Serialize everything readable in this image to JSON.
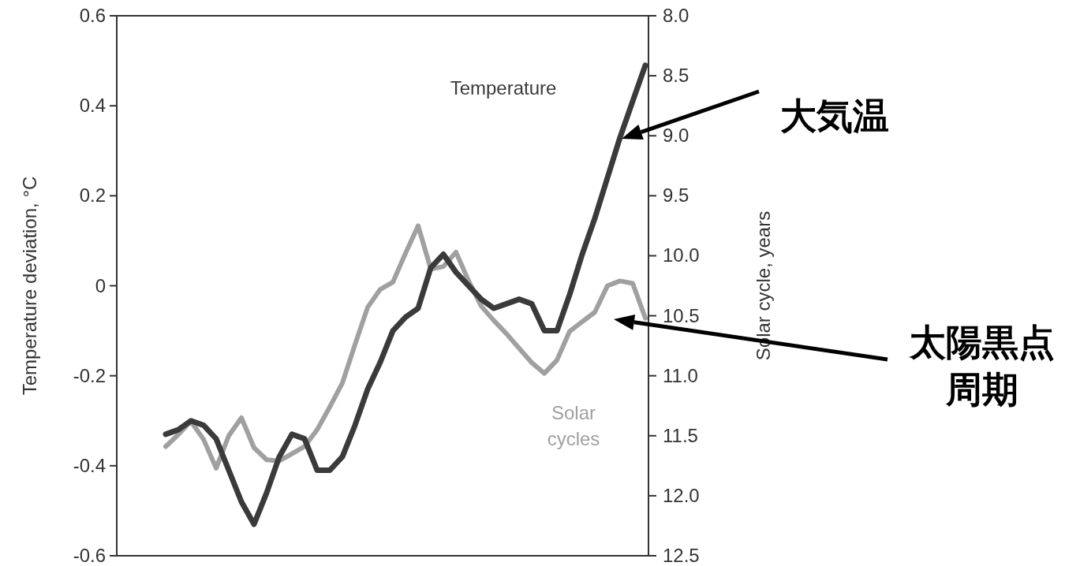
{
  "chart_data": {
    "type": "line",
    "ylabel": "Temperature deviation, °C",
    "y2label": "Solar cycle, years",
    "categories": [
      null,
      null,
      null,
      null,
      null,
      null,
      null,
      null,
      null,
      null,
      null,
      null,
      null,
      null,
      null,
      null,
      null,
      null,
      null,
      null,
      null,
      null,
      null,
      null,
      null,
      null,
      null,
      null,
      null,
      null,
      null,
      null,
      null,
      null,
      null,
      null,
      null,
      null,
      null
    ],
    "series": [
      {
        "name": "Temperature",
        "color": "#3a3a3a",
        "values": [
          -0.33,
          -0.32,
          -0.3,
          -0.31,
          -0.34,
          -0.41,
          -0.48,
          -0.53,
          -0.46,
          -0.38,
          -0.33,
          -0.34,
          -0.41,
          -0.41,
          -0.38,
          -0.31,
          -0.23,
          -0.17,
          -0.1,
          -0.07,
          -0.05,
          0.04,
          0.07,
          0.03,
          0.0,
          -0.03,
          -0.05,
          -0.04,
          -0.03,
          -0.04,
          -0.1,
          -0.1,
          -0.02,
          0.07,
          0.15,
          0.24,
          0.33,
          0.41,
          0.49
        ]
      },
      {
        "name": "Solar cycles",
        "color": "#a0a0a0",
        "axis": "y2",
        "values": [
          11.59,
          11.49,
          11.38,
          11.53,
          11.77,
          11.5,
          11.35,
          11.6,
          11.7,
          11.71,
          11.65,
          11.59,
          11.45,
          11.26,
          11.06,
          10.74,
          10.43,
          10.28,
          10.22,
          9.98,
          9.75,
          10.11,
          10.09,
          9.97,
          10.21,
          10.42,
          10.54,
          10.65,
          10.77,
          10.89,
          10.98,
          10.87,
          10.63,
          10.55,
          10.47,
          10.25,
          10.21,
          10.23,
          10.52
        ]
      }
    ],
    "ylim": [
      -0.6,
      0.6
    ],
    "yticks": [
      -0.6,
      -0.4,
      -0.2,
      0,
      0.2,
      0.4,
      0.6
    ],
    "y2lim": [
      12.5,
      8.0
    ],
    "y2ticks": [
      {
        "value": 8,
        "label": "8.0"
      },
      8.5,
      {
        "value": 9,
        "label": "9.0"
      },
      9.5,
      {
        "value": 10,
        "label": "10.0"
      },
      10.5,
      {
        "value": 11,
        "label": "11.0"
      },
      11.5,
      {
        "value": 12,
        "label": "12.0"
      },
      12.5
    ],
    "annotations": [
      "大気温",
      "太陽黒点周期"
    ]
  }
}
